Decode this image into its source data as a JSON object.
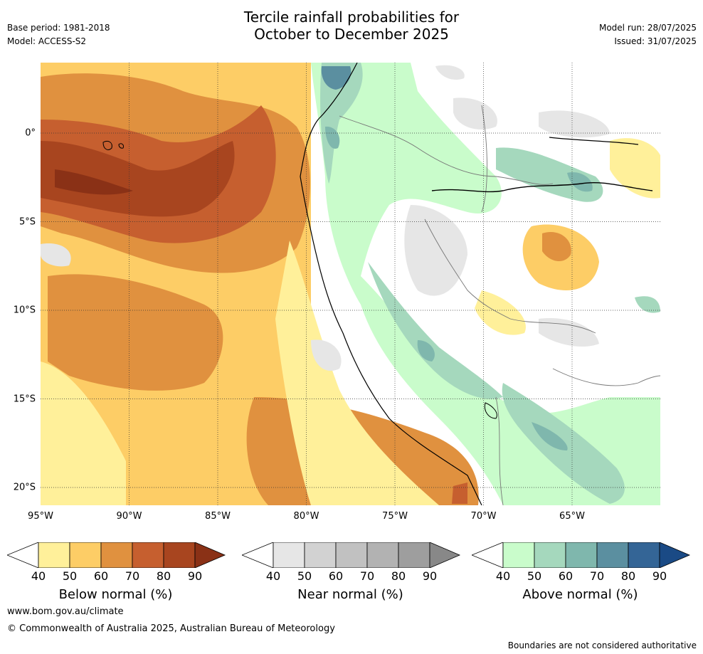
{
  "header": {
    "title_line1": "Tercile rainfall probabilities for",
    "title_line2": "October to December 2025",
    "base_period": "Base period: 1981-2018",
    "model": "Model: ACCESS-S2",
    "model_run": "Model run: 28/07/2025",
    "issued": "Issued: 31/07/2025"
  },
  "map": {
    "x_ticks": [
      "95°W",
      "90°W",
      "85°W",
      "80°W",
      "75°W",
      "70°W",
      "65°W"
    ],
    "y_ticks": [
      "0°",
      "5°S",
      "10°S",
      "15°S",
      "20°S"
    ],
    "colors": {
      "below": [
        "#fff09a",
        "#fdcd66",
        "#e0913f",
        "#c65f2f",
        "#a8451f",
        "#8a3116"
      ],
      "near": [
        "#e6e6e6",
        "#d2d2d2",
        "#c1c1c1",
        "#b2b2b2",
        "#9e9e9e",
        "#888888"
      ],
      "above": [
        "#c9fccb",
        "#a5d8bd",
        "#7fb7ad",
        "#5b8fa0",
        "#346596",
        "#1a4a85"
      ]
    }
  },
  "legend": {
    "below": {
      "label": "Below normal (%)",
      "ticks": [
        "40",
        "50",
        "60",
        "70",
        "80",
        "90"
      ]
    },
    "near": {
      "label": "Near normal (%)",
      "ticks": [
        "40",
        "50",
        "60",
        "70",
        "80",
        "90"
      ]
    },
    "above": {
      "label": "Above normal (%)",
      "ticks": [
        "40",
        "50",
        "60",
        "70",
        "80",
        "90"
      ]
    }
  },
  "footer": {
    "website": "www.bom.gov.au/climate",
    "copyright": "© Commonwealth of Australia 2025, Australian Bureau of Meteorology",
    "disclaimer": "Boundaries are not considered authoritative"
  }
}
